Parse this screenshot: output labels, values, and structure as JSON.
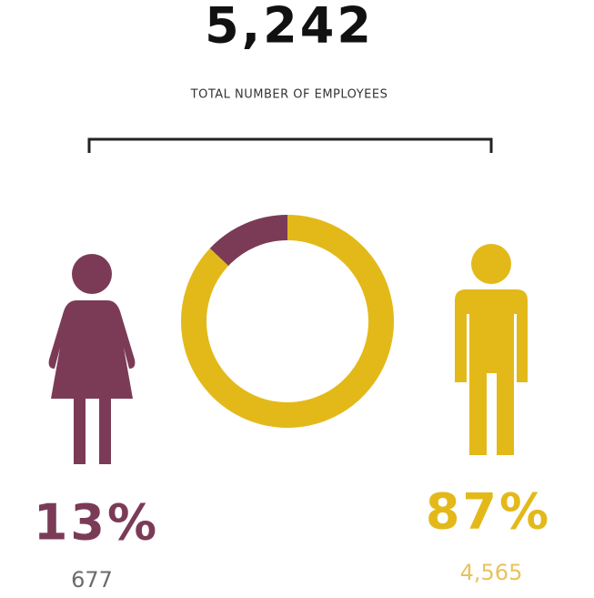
{
  "chart_data": {
    "type": "donut",
    "total": {
      "value": 5242,
      "label": "5,242"
    },
    "subtitle": "TOTAL NUMBER OF EMPLOYEES",
    "values": [
      13,
      87
    ],
    "value_labels": [
      "13%",
      "87%"
    ],
    "counts": [
      677,
      4565
    ],
    "count_labels": [
      "677",
      "4,565"
    ],
    "colors": [
      "#7b3b57",
      "#e3b91a"
    ]
  }
}
